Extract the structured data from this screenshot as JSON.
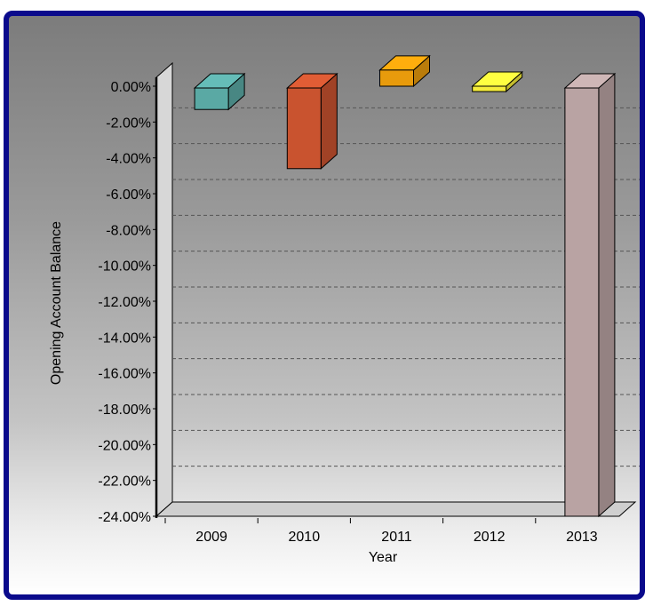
{
  "chart_data": {
    "type": "bar",
    "xlabel": "Year",
    "ylabel": "Opening Account Balance",
    "categories": [
      "2009",
      "2010",
      "2011",
      "2012",
      "2013"
    ],
    "values": [
      -1.3,
      -4.6,
      0.0,
      -0.3,
      -24.0
    ],
    "bar_tops": [
      -0.1,
      -0.1,
      0.9,
      0.0,
      -0.1
    ],
    "colors": [
      "#5aa9a4",
      "#c9532f",
      "#e89b0c",
      "#f5ec3a",
      "#b9a3a3"
    ],
    "yticks": [
      "0.00%",
      "-2.00%",
      "-4.00%",
      "-6.00%",
      "-8.00%",
      "-10.00%",
      "-12.00%",
      "-14.00%",
      "-16.00%",
      "-18.00%",
      "-20.00%",
      "-22.00%",
      "-24.00%"
    ],
    "ylim": [
      -24,
      0
    ],
    "grid": true,
    "style": "3d"
  }
}
